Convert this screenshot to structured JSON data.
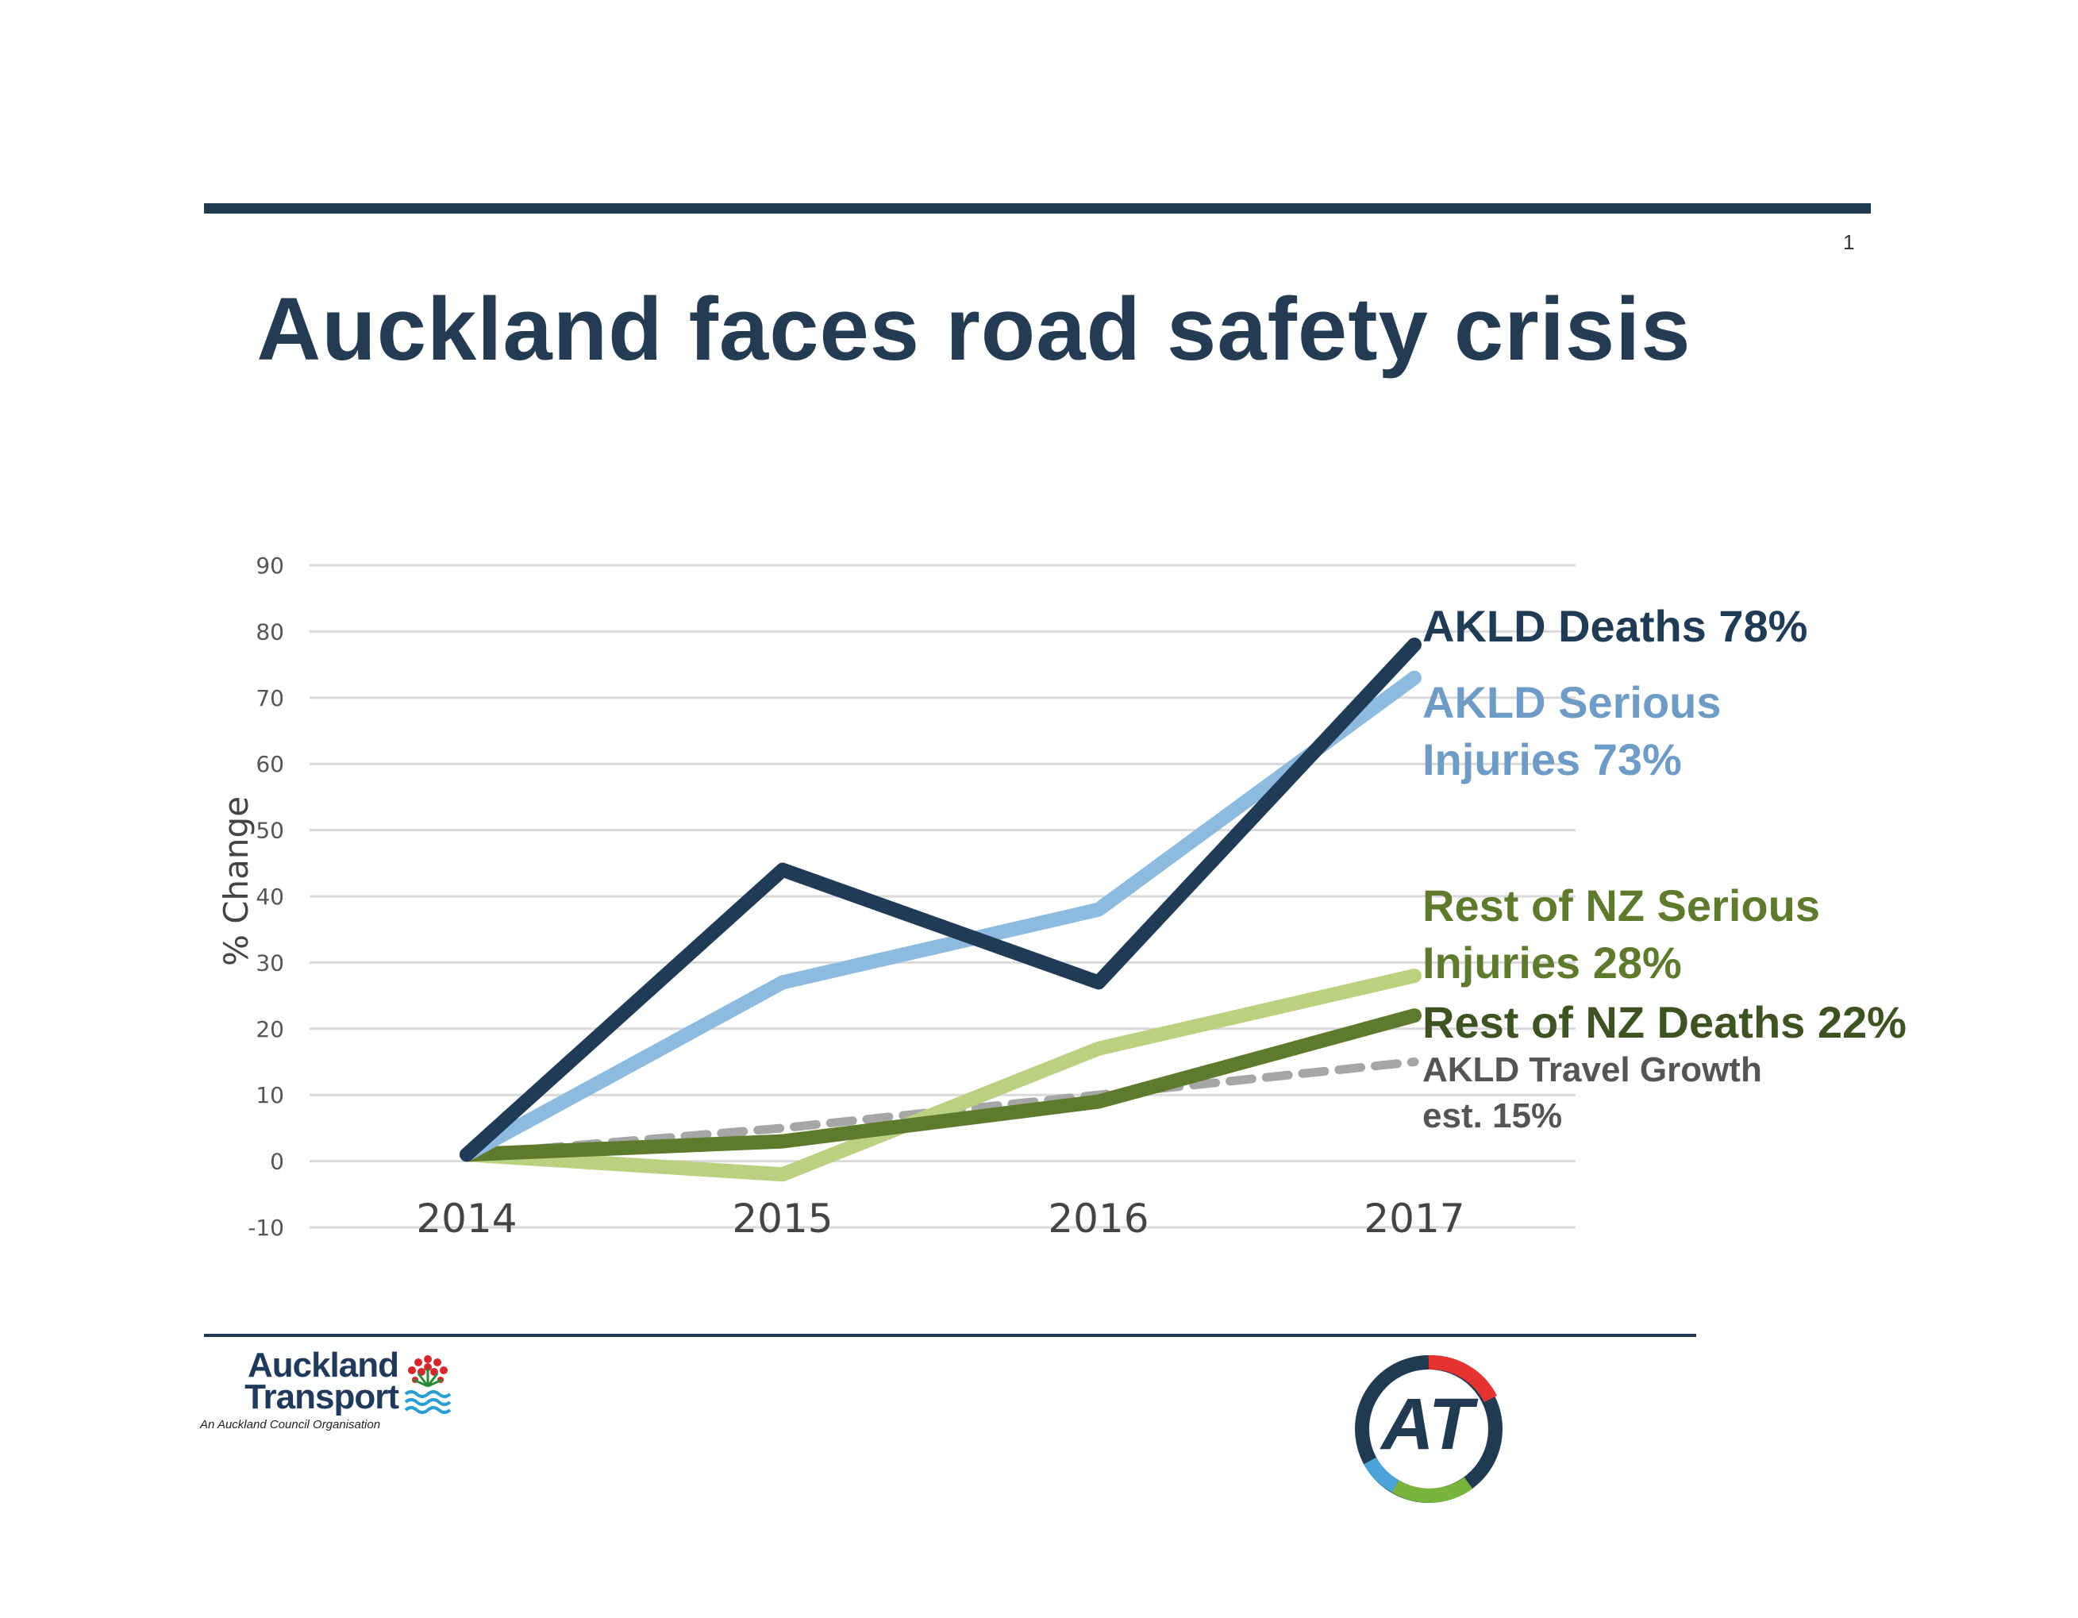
{
  "page": {
    "number": "1",
    "title": "Auckland faces road safety crisis"
  },
  "branding": {
    "org_line1": "Auckland",
    "org_line2": "Transport",
    "org_subtitle": "An Auckland Council Organisation",
    "logo_text": "AT",
    "colors": {
      "navy": "#203a52",
      "red": "#e63330",
      "green": "#79b53d",
      "blue": "#4ba3d9"
    }
  },
  "chart_data": {
    "type": "line",
    "categories": [
      "2014",
      "2015",
      "2016",
      "2017"
    ],
    "ylabel": "% Change",
    "ylim": [
      -10,
      90
    ],
    "yticks": [
      -10,
      0,
      10,
      20,
      30,
      40,
      50,
      60,
      70,
      80,
      90
    ],
    "grid": true,
    "series": [
      {
        "name": "AKLD Deaths 78%",
        "values": [
          1,
          44,
          27,
          78
        ],
        "color": "#1f3b55",
        "style": "solid"
      },
      {
        "name": "AKLD Serious Injuries 73%",
        "values": [
          1,
          27,
          38,
          73
        ],
        "color": "#8dbbdf",
        "style": "solid"
      },
      {
        "name": "Rest of NZ Serious Injuries 28%",
        "values": [
          1,
          -2,
          17,
          28
        ],
        "color": "#bad17f",
        "style": "solid"
      },
      {
        "name": "Rest of NZ Deaths 22%",
        "values": [
          1,
          3,
          9,
          22
        ],
        "color": "#5e7a2c",
        "style": "solid"
      },
      {
        "name": "AKLD Travel Growth est. 15%",
        "values": [
          1,
          5,
          10,
          15
        ],
        "color": "#a6a6a6",
        "style": "dashed"
      }
    ],
    "labels": [
      {
        "lines": [
          "AKLD Deaths 78%"
        ],
        "color": "#1f3b55"
      },
      {
        "lines": [
          "AKLD Serious",
          "Injuries 73%"
        ],
        "color": "#6f9cc6"
      },
      {
        "lines": [
          "Rest of NZ Serious",
          "Injuries 28%"
        ],
        "color": "#5e7a2c"
      },
      {
        "lines": [
          "Rest of NZ Deaths 22%"
        ],
        "color": "#3d5321"
      },
      {
        "lines": [
          "AKLD Travel Growth",
          "est. 15%"
        ],
        "color": "#555555"
      }
    ]
  }
}
